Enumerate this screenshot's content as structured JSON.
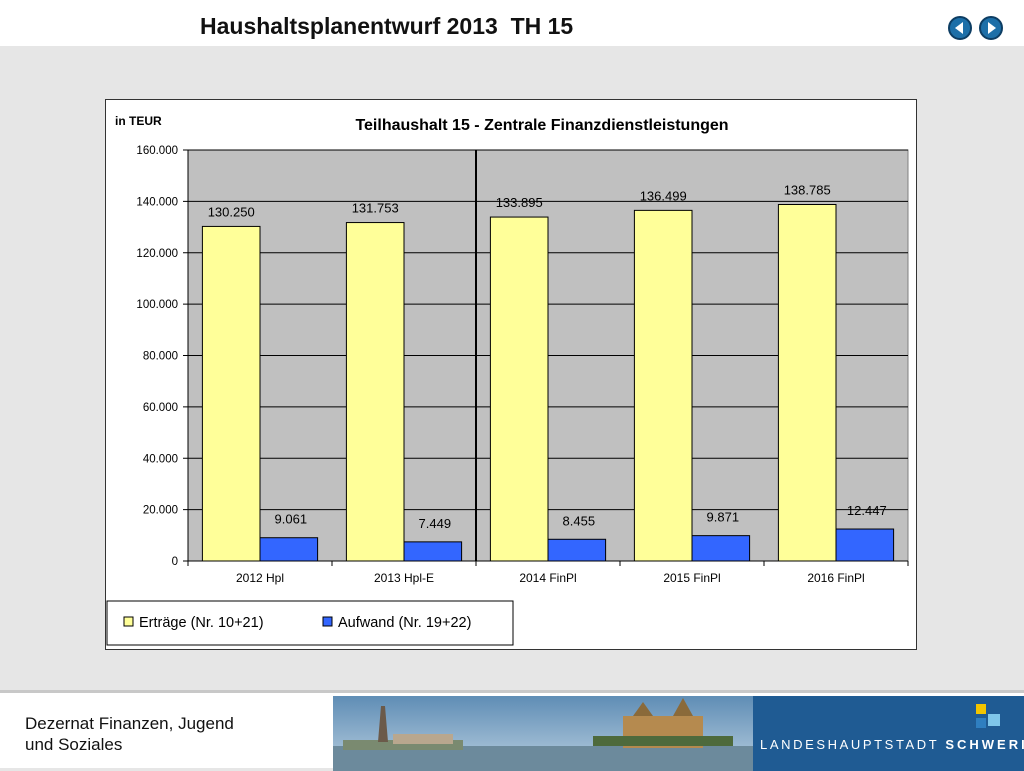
{
  "header": {
    "title": "Haushaltsplanentwurf 2013  TH 15",
    "prev_icon": "chevron-left-icon",
    "next_icon": "chevron-right-icon",
    "accent": "#1d6fa8"
  },
  "chart_data": {
    "type": "bar",
    "title": "Teilhaushalt 15 - Zentrale Finanzdienstleistungen",
    "ylabel": "in TEUR",
    "xlabel": "",
    "categories": [
      "2012 Hpl",
      "2013 Hpl-E",
      "2014 FinPl",
      "2015 FinPl",
      "2016 FinPl"
    ],
    "ylim": [
      0,
      160000
    ],
    "yticks": [
      0,
      20000,
      40000,
      60000,
      80000,
      100000,
      120000,
      140000,
      160000
    ],
    "ytick_labels": [
      "0",
      "20.000",
      "40.000",
      "60.000",
      "80.000",
      "100.000",
      "120.000",
      "140.000",
      "160.000"
    ],
    "grid": true,
    "legend_position": "bottom-left",
    "divider_after_category": "2013 Hpl-E",
    "series": [
      {
        "name": "Erträge (Nr. 10+21)",
        "color": "#ffff99",
        "values": [
          130250,
          131753,
          133895,
          136499,
          138785
        ],
        "labels": [
          "130.250",
          "131.753",
          "133.895",
          "136.499",
          "138.785"
        ]
      },
      {
        "name": "Aufwand (Nr. 19+22)",
        "color": "#3366ff",
        "values": [
          9061,
          7449,
          8455,
          9871,
          12447
        ],
        "labels": [
          "9.061",
          "7.449",
          "8.455",
          "9.871",
          "12.447"
        ]
      }
    ]
  },
  "footer": {
    "line1": "Dezernat Finanzen, Jugend",
    "line2": "und Soziales",
    "brand_prefix": "LANDESHAUPTSTADT",
    "brand_name": "SCHWERIN"
  }
}
